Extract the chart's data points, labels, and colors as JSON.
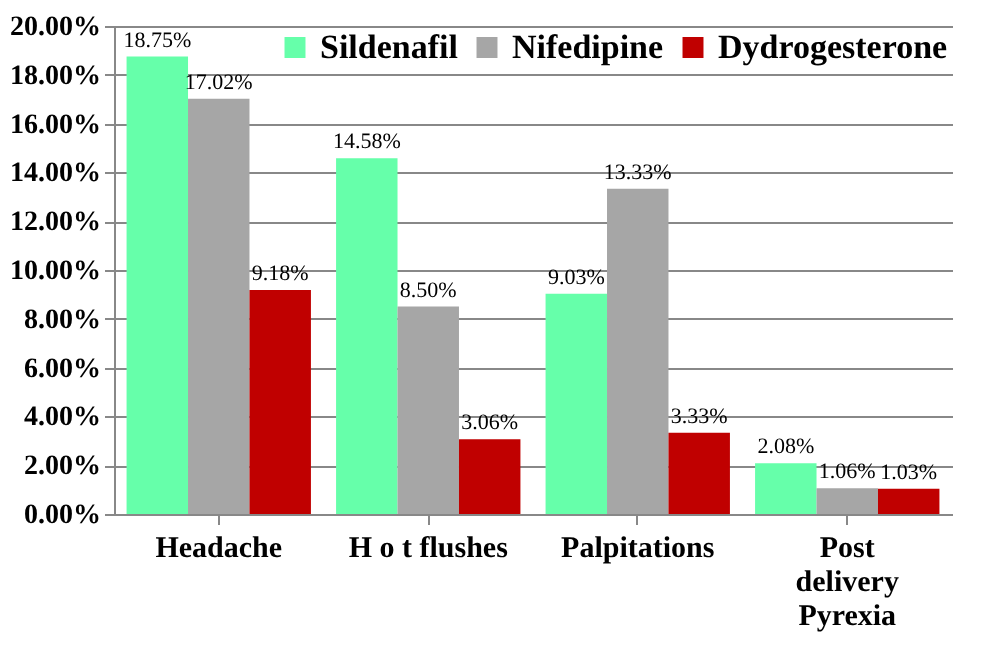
{
  "chart_data": {
    "type": "bar",
    "categories": [
      "Headache",
      "H o t flushes",
      "Palpitations",
      "Post delivery Pyrexia"
    ],
    "series": [
      {
        "name": "Sildenafil",
        "color": "#66ffaa",
        "values": [
          18.75,
          14.58,
          9.03,
          2.08
        ],
        "value_labels": [
          "18.75%",
          "14.58%",
          "9.03%",
          "2.08%"
        ]
      },
      {
        "name": "Nifedipine",
        "color": "#a6a6a6",
        "values": [
          17.02,
          8.5,
          13.33,
          1.06
        ],
        "value_labels": [
          "17.02%",
          "8.50%",
          "13.33%",
          "1.06%"
        ]
      },
      {
        "name": "Dydrogesterone",
        "color": "#c00000",
        "values": [
          9.18,
          3.06,
          3.33,
          1.03
        ],
        "value_labels": [
          "9.18%",
          "3.06%",
          "3.33%",
          "1.03%"
        ]
      }
    ],
    "ylim": [
      0,
      20
    ],
    "yticks": [
      {
        "value": 0,
        "label": "0.00%"
      },
      {
        "value": 2,
        "label": "2.00%"
      },
      {
        "value": 4,
        "label": "4.00%"
      },
      {
        "value": 6,
        "label": "6.00%"
      },
      {
        "value": 8,
        "label": "8.00%"
      },
      {
        "value": 10,
        "label": "10.00%"
      },
      {
        "value": 12,
        "label": "12.00%"
      },
      {
        "value": 14,
        "label": "14.00%"
      },
      {
        "value": 16,
        "label": "16.00%"
      },
      {
        "value": 18,
        "label": "18.00%"
      },
      {
        "value": 20,
        "label": "20.00%"
      }
    ],
    "grid": "y",
    "legend": "top right"
  }
}
